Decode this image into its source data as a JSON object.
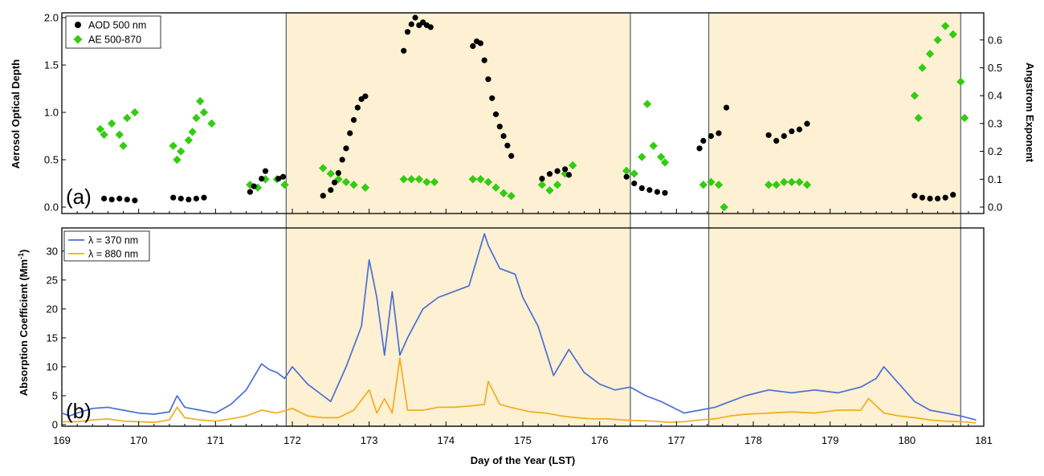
{
  "chart_data": [
    {
      "panel": "(a)",
      "type": "scatter",
      "xlabel": "",
      "ylabel": "Aerosol Optical Depth",
      "y2label": "Angstrom Exponent",
      "xlim": [
        169,
        181
      ],
      "ylim": [
        0,
        2.0
      ],
      "y2lim": [
        0,
        0.68
      ],
      "yticks": [
        "0.0",
        "0.5",
        "1.0",
        "1.5",
        "2.0"
      ],
      "y2ticks": [
        "0.0",
        "0.1",
        "0.2",
        "0.3",
        "0.4",
        "0.5",
        "0.6"
      ],
      "legend_position": "top-left",
      "highlight_regions": [
        [
          171.92,
          176.4
        ],
        [
          177.42,
          180.7
        ]
      ],
      "series": [
        {
          "name": "AOD 500 nm",
          "axis": "left",
          "marker": "circle",
          "color": "#000000",
          "points": [
            [
              169.55,
              0.09
            ],
            [
              169.65,
              0.08
            ],
            [
              169.75,
              0.09
            ],
            [
              169.85,
              0.08
            ],
            [
              169.95,
              0.07
            ],
            [
              170.45,
              0.1
            ],
            [
              170.55,
              0.09
            ],
            [
              170.65,
              0.08
            ],
            [
              170.75,
              0.09
            ],
            [
              170.85,
              0.1
            ],
            [
              171.45,
              0.16
            ],
            [
              171.5,
              0.22
            ],
            [
              171.6,
              0.3
            ],
            [
              171.65,
              0.38
            ],
            [
              171.82,
              0.3
            ],
            [
              171.88,
              0.32
            ],
            [
              172.4,
              0.12
            ],
            [
              172.5,
              0.18
            ],
            [
              172.55,
              0.26
            ],
            [
              172.6,
              0.36
            ],
            [
              172.65,
              0.5
            ],
            [
              172.7,
              0.62
            ],
            [
              172.75,
              0.78
            ],
            [
              172.8,
              0.92
            ],
            [
              172.85,
              1.05
            ],
            [
              172.9,
              1.14
            ],
            [
              172.95,
              1.17
            ],
            [
              173.45,
              1.65
            ],
            [
              173.5,
              1.85
            ],
            [
              173.55,
              1.93
            ],
            [
              173.6,
              2.0
            ],
            [
              173.65,
              1.92
            ],
            [
              173.7,
              1.95
            ],
            [
              173.75,
              1.92
            ],
            [
              173.8,
              1.9
            ],
            [
              174.35,
              1.7
            ],
            [
              174.4,
              1.75
            ],
            [
              174.45,
              1.73
            ],
            [
              174.5,
              1.55
            ],
            [
              174.55,
              1.35
            ],
            [
              174.6,
              1.15
            ],
            [
              174.65,
              0.98
            ],
            [
              174.7,
              0.85
            ],
            [
              174.75,
              0.75
            ],
            [
              174.8,
              0.65
            ],
            [
              174.85,
              0.54
            ],
            [
              175.25,
              0.3
            ],
            [
              175.35,
              0.35
            ],
            [
              175.45,
              0.38
            ],
            [
              175.55,
              0.4
            ],
            [
              175.6,
              0.34
            ],
            [
              176.35,
              0.32
            ],
            [
              176.45,
              0.25
            ],
            [
              176.55,
              0.2
            ],
            [
              176.65,
              0.18
            ],
            [
              176.75,
              0.16
            ],
            [
              176.85,
              0.15
            ],
            [
              177.3,
              0.62
            ],
            [
              177.35,
              0.7
            ],
            [
              177.45,
              0.75
            ],
            [
              177.55,
              0.78
            ],
            [
              177.65,
              1.05
            ],
            [
              178.2,
              0.76
            ],
            [
              178.3,
              0.7
            ],
            [
              178.4,
              0.75
            ],
            [
              178.5,
              0.8
            ],
            [
              178.6,
              0.82
            ],
            [
              178.7,
              0.88
            ],
            [
              180.1,
              0.12
            ],
            [
              180.2,
              0.1
            ],
            [
              180.3,
              0.09
            ],
            [
              180.4,
              0.09
            ],
            [
              180.5,
              0.1
            ],
            [
              180.6,
              0.13
            ]
          ]
        },
        {
          "name": "AE 500-870",
          "axis": "right",
          "marker": "diamond",
          "color": "#33cc11",
          "points": [
            [
              169.5,
              0.28
            ],
            [
              169.55,
              0.26
            ],
            [
              169.65,
              0.3
            ],
            [
              169.75,
              0.26
            ],
            [
              169.8,
              0.22
            ],
            [
              169.85,
              0.32
            ],
            [
              169.95,
              0.34
            ],
            [
              170.45,
              0.22
            ],
            [
              170.5,
              0.17
            ],
            [
              170.55,
              0.2
            ],
            [
              170.65,
              0.24
            ],
            [
              170.7,
              0.27
            ],
            [
              170.75,
              0.32
            ],
            [
              170.8,
              0.38
            ],
            [
              170.85,
              0.34
            ],
            [
              170.95,
              0.3
            ],
            [
              171.45,
              0.08
            ],
            [
              171.55,
              0.07
            ],
            [
              171.65,
              0.1
            ],
            [
              171.8,
              0.1
            ],
            [
              171.9,
              0.08
            ],
            [
              172.4,
              0.14
            ],
            [
              172.5,
              0.12
            ],
            [
              172.6,
              0.1
            ],
            [
              172.7,
              0.09
            ],
            [
              172.8,
              0.08
            ],
            [
              172.95,
              0.07
            ],
            [
              173.45,
              0.1
            ],
            [
              173.55,
              0.1
            ],
            [
              173.65,
              0.1
            ],
            [
              173.75,
              0.09
            ],
            [
              173.85,
              0.09
            ],
            [
              174.35,
              0.1
            ],
            [
              174.45,
              0.1
            ],
            [
              174.55,
              0.09
            ],
            [
              174.65,
              0.07
            ],
            [
              174.75,
              0.05
            ],
            [
              174.85,
              0.04
            ],
            [
              175.25,
              0.08
            ],
            [
              175.35,
              0.06
            ],
            [
              175.45,
              0.08
            ],
            [
              175.55,
              0.12
            ],
            [
              175.65,
              0.15
            ],
            [
              176.35,
              0.13
            ],
            [
              176.45,
              0.12
            ],
            [
              176.55,
              0.18
            ],
            [
              176.62,
              0.37
            ],
            [
              176.7,
              0.22
            ],
            [
              176.8,
              0.18
            ],
            [
              176.85,
              0.16
            ],
            [
              177.35,
              0.08
            ],
            [
              177.45,
              0.09
            ],
            [
              177.55,
              0.08
            ],
            [
              177.62,
              0.0
            ],
            [
              178.2,
              0.08
            ],
            [
              178.3,
              0.08
            ],
            [
              178.4,
              0.09
            ],
            [
              178.5,
              0.09
            ],
            [
              178.6,
              0.09
            ],
            [
              178.7,
              0.08
            ],
            [
              180.1,
              0.4
            ],
            [
              180.15,
              0.32
            ],
            [
              180.2,
              0.5
            ],
            [
              180.3,
              0.55
            ],
            [
              180.4,
              0.6
            ],
            [
              180.5,
              0.65
            ],
            [
              180.6,
              0.62
            ],
            [
              180.7,
              0.45
            ],
            [
              180.75,
              0.32
            ]
          ]
        }
      ]
    },
    {
      "panel": "(b)",
      "type": "line",
      "xlabel": "Day of the Year (LST)",
      "ylabel": "Absorption Coefficient (Mm",
      "ylabel_unit_sup": "-1",
      "ylabel_close": ")",
      "xlim": [
        169,
        181
      ],
      "ylim": [
        0,
        34
      ],
      "yticks": [
        "0",
        "5",
        "10",
        "15",
        "20",
        "25",
        "30"
      ],
      "xticks": [
        "169",
        "170",
        "171",
        "172",
        "173",
        "174",
        "175",
        "176",
        "177",
        "178",
        "179",
        "180",
        "181"
      ],
      "legend_position": "top-left",
      "highlight_regions": [
        [
          171.92,
          176.4
        ],
        [
          177.42,
          180.7
        ]
      ],
      "series": [
        {
          "name": "λ = 370 nm",
          "color": "#4a6fd4",
          "x": [
            169.0,
            169.1,
            169.2,
            169.4,
            169.6,
            169.8,
            170.0,
            170.2,
            170.4,
            170.5,
            170.6,
            170.8,
            171.0,
            171.2,
            171.4,
            171.6,
            171.7,
            171.8,
            171.9,
            172.0,
            172.2,
            172.4,
            172.5,
            172.7,
            172.9,
            173.0,
            173.1,
            173.2,
            173.3,
            173.4,
            173.5,
            173.7,
            173.9,
            174.1,
            174.3,
            174.5,
            174.55,
            174.7,
            174.9,
            175.0,
            175.2,
            175.4,
            175.6,
            175.8,
            176.0,
            176.2,
            176.4,
            176.6,
            176.8,
            176.95,
            177.1,
            177.3,
            177.5,
            177.7,
            177.9,
            178.2,
            178.5,
            178.8,
            179.1,
            179.4,
            179.6,
            179.7,
            179.9,
            180.1,
            180.3,
            180.5,
            180.7,
            180.9
          ],
          "values": [
            2.0,
            1.5,
            2.0,
            2.8,
            3.0,
            2.5,
            2.0,
            1.8,
            2.2,
            5.0,
            3.0,
            2.5,
            2.0,
            3.5,
            6.0,
            10.5,
            9.5,
            9.0,
            8.0,
            10.0,
            7.0,
            5.0,
            4.0,
            10.0,
            17.0,
            28.5,
            22.0,
            12.0,
            23.0,
            12.0,
            15.0,
            20.0,
            22.0,
            23.0,
            24.0,
            33.0,
            31.0,
            27.0,
            26.0,
            22.0,
            17.0,
            8.5,
            13.0,
            9.0,
            7.0,
            6.0,
            6.5,
            5.0,
            4.0,
            3.0,
            2.0,
            2.5,
            3.0,
            4.0,
            5.0,
            6.0,
            5.5,
            6.0,
            5.5,
            6.5,
            8.0,
            10.0,
            7.0,
            4.0,
            2.5,
            2.0,
            1.5,
            0.8
          ]
        },
        {
          "name": "λ = 880 nm",
          "color": "#f2ad1a",
          "x": [
            169.0,
            169.2,
            169.4,
            169.6,
            169.8,
            170.0,
            170.2,
            170.4,
            170.5,
            170.6,
            170.8,
            171.0,
            171.2,
            171.4,
            171.6,
            171.8,
            172.0,
            172.2,
            172.4,
            172.6,
            172.8,
            173.0,
            173.1,
            173.2,
            173.3,
            173.4,
            173.5,
            173.7,
            173.9,
            174.1,
            174.3,
            174.5,
            174.55,
            174.7,
            174.9,
            175.1,
            175.3,
            175.5,
            175.7,
            175.9,
            176.1,
            176.3,
            176.5,
            176.7,
            176.9,
            177.1,
            177.3,
            177.5,
            177.7,
            177.9,
            178.2,
            178.5,
            178.8,
            179.1,
            179.4,
            179.5,
            179.7,
            179.9,
            180.1,
            180.3,
            180.5,
            180.7,
            180.9
          ],
          "values": [
            0.5,
            0.5,
            0.8,
            1.0,
            0.6,
            0.5,
            0.4,
            0.8,
            3.0,
            1.2,
            0.8,
            0.6,
            1.0,
            1.5,
            2.5,
            2.0,
            2.8,
            1.5,
            1.2,
            1.2,
            2.5,
            6.0,
            2.0,
            4.5,
            2.0,
            11.5,
            2.5,
            2.5,
            3.0,
            3.0,
            3.2,
            3.5,
            7.5,
            3.5,
            2.8,
            2.2,
            2.0,
            1.5,
            1.2,
            1.0,
            1.0,
            0.8,
            0.7,
            0.6,
            0.4,
            0.5,
            0.8,
            1.0,
            1.5,
            1.8,
            2.0,
            2.2,
            2.0,
            2.5,
            2.5,
            4.5,
            2.0,
            1.5,
            1.2,
            0.8,
            0.6,
            0.5,
            0.3
          ]
        }
      ]
    }
  ]
}
